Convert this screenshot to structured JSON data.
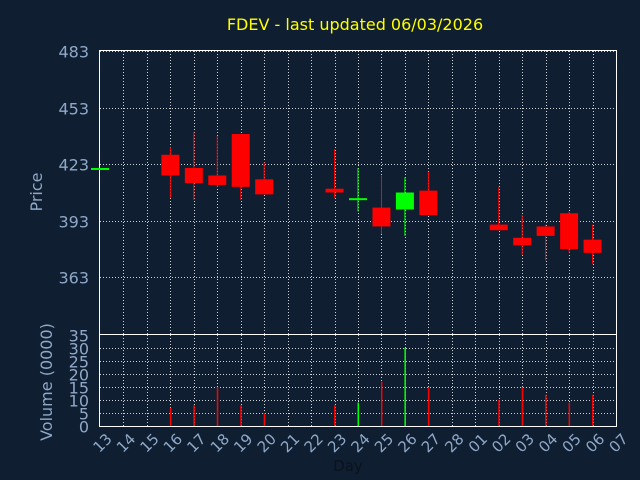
{
  "chart_data": [
    {
      "type": "candlestick",
      "title": "FDEV - last updated 06/03/2026",
      "ylabel": "Price",
      "ylim": [
        333,
        483
      ],
      "yticks": [
        "483",
        "453",
        "423",
        "393",
        "363"
      ],
      "grid": true,
      "colors": {
        "up": "#00ff00",
        "down": "#ff0000"
      },
      "candles": [
        {
          "x": "13",
          "open": 420,
          "high": 420,
          "low": 420,
          "close": 421
        },
        {
          "x": "16",
          "open": 428,
          "high": 432,
          "low": 405,
          "close": 417
        },
        {
          "x": "17",
          "open": 421,
          "high": 440,
          "low": 404,
          "close": 413
        },
        {
          "x": "18",
          "open": 417,
          "high": 438,
          "low": 411,
          "close": 412
        },
        {
          "x": "19",
          "open": 439,
          "high": 439,
          "low": 404,
          "close": 411
        },
        {
          "x": "20",
          "open": 415,
          "high": 424,
          "low": 407,
          "close": 407
        },
        {
          "x": "23",
          "open": 410,
          "high": 431,
          "low": 405,
          "close": 408
        },
        {
          "x": "24",
          "open": 404,
          "high": 421,
          "low": 398,
          "close": 405
        },
        {
          "x": "25",
          "open": 400,
          "high": 417,
          "low": 386,
          "close": 390
        },
        {
          "x": "26",
          "open": 399,
          "high": 416,
          "low": 385,
          "close": 408
        },
        {
          "x": "27",
          "open": 409,
          "high": 419,
          "low": 396,
          "close": 396
        },
        {
          "x": "02",
          "open": 391,
          "high": 411,
          "low": 388,
          "close": 388
        },
        {
          "x": "03",
          "open": 384,
          "high": 396,
          "low": 375,
          "close": 380
        },
        {
          "x": "04",
          "open": 390,
          "high": 391,
          "low": 372,
          "close": 385
        },
        {
          "x": "05",
          "open": 397,
          "high": 398,
          "low": 376,
          "close": 378
        },
        {
          "x": "06",
          "open": 383,
          "high": 391,
          "low": 370,
          "close": 376
        }
      ]
    },
    {
      "type": "bar",
      "ylabel": "Volume (0000)",
      "xlabel": "Day",
      "ylim": [
        0,
        35
      ],
      "yticks": [
        "35",
        "30",
        "25",
        "20",
        "15",
        "10",
        "5",
        "0"
      ],
      "categories": [
        "13",
        "14",
        "15",
        "16",
        "17",
        "18",
        "19",
        "20",
        "21",
        "22",
        "23",
        "24",
        "25",
        "26",
        "27",
        "28",
        "01",
        "02",
        "03",
        "04",
        "05",
        "06",
        "07"
      ],
      "values": [
        0,
        0,
        0,
        7,
        8,
        15,
        8,
        5,
        0,
        0,
        8,
        9,
        17,
        30,
        15,
        0,
        0,
        10,
        15,
        12,
        9,
        12,
        0
      ],
      "bar_colors": [
        "#ff0000",
        "#ff0000",
        "#ff0000",
        "#ff0000",
        "#ff0000",
        "#ff0000",
        "#ff0000",
        "#ff0000",
        "#ff0000",
        "#ff0000",
        "#ff0000",
        "#00ff00",
        "#ff0000",
        "#00ff00",
        "#ff0000",
        "#ff0000",
        "#ff0000",
        "#ff0000",
        "#ff0000",
        "#ff0000",
        "#ff0000",
        "#ff0000",
        "#ff0000"
      ]
    }
  ]
}
